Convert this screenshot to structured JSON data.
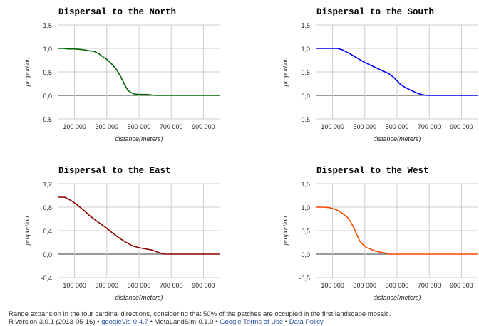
{
  "chart_data": [
    {
      "type": "line",
      "title": "Dispersal to the North",
      "xlabel": "distance(meters)",
      "ylabel": "proportion",
      "color": "#006400",
      "xlim": [
        0,
        1000000
      ],
      "ylim": [
        -0.5,
        1.5
      ],
      "yticks": [
        -0.5,
        0,
        0.5,
        1,
        1.5
      ],
      "ytick_labels": [
        "-0,5",
        "0,0",
        "0,5",
        "1,0",
        "1,5"
      ],
      "xticks": [
        100000,
        300000,
        500000,
        700000,
        900000
      ],
      "xtick_labels": [
        "100 000",
        "300 000",
        "500 000",
        "700 000",
        "900 000"
      ],
      "x": [
        0,
        30000,
        60000,
        100000,
        130000,
        160000,
        190000,
        220000,
        250000,
        280000,
        300000,
        330000,
        360000,
        390000,
        410000,
        430000,
        450000,
        470000,
        500000,
        550000,
        600000,
        700000,
        800000,
        1000000
      ],
      "y": [
        1.0,
        1.0,
        0.99,
        0.99,
        0.98,
        0.97,
        0.95,
        0.94,
        0.89,
        0.81,
        0.77,
        0.67,
        0.55,
        0.38,
        0.23,
        0.11,
        0.06,
        0.03,
        0.02,
        0.02,
        0.0,
        0.0,
        0.0,
        0.0
      ]
    },
    {
      "type": "line",
      "title": "Dispersal to the South",
      "xlabel": "distance(meters)",
      "ylabel": "proportion",
      "color": "#0000ee",
      "xlim": [
        0,
        1000000
      ],
      "ylim": [
        -0.5,
        1.5
      ],
      "yticks": [
        -0.5,
        0,
        0.5,
        1,
        1.5
      ],
      "ytick_labels": [
        "-0,5",
        "0,0",
        "0,5",
        "1,0",
        "1,5"
      ],
      "xticks": [
        100000,
        300000,
        500000,
        700000,
        900000
      ],
      "xtick_labels": [
        "100 000",
        "300 000",
        "500 000",
        "700 000",
        "900 000"
      ],
      "x": [
        0,
        50000,
        100000,
        130000,
        160000,
        200000,
        250000,
        300000,
        350000,
        400000,
        450000,
        480000,
        500000,
        520000,
        550000,
        580000,
        610000,
        640000,
        680000,
        700000,
        800000,
        1000000
      ],
      "y": [
        1.0,
        1.0,
        1.0,
        1.0,
        0.97,
        0.9,
        0.8,
        0.7,
        0.62,
        0.54,
        0.46,
        0.38,
        0.31,
        0.24,
        0.17,
        0.12,
        0.07,
        0.03,
        0.0,
        0.0,
        0.0,
        0.0
      ]
    },
    {
      "type": "line",
      "title": "Dispersal to the East",
      "xlabel": "distance(meters)",
      "ylabel": "proportion",
      "color": "#8b0000",
      "xlim": [
        0,
        1000000
      ],
      "ylim": [
        -0.4,
        1.2
      ],
      "yticks": [
        -0.4,
        0,
        0.4,
        0.8,
        1.2
      ],
      "ytick_labels": [
        "-0,4",
        "0,0",
        "0,4",
        "0,8",
        "1,2"
      ],
      "xticks": [
        100000,
        300000,
        500000,
        700000,
        900000
      ],
      "xtick_labels": [
        "100 000",
        "300 000",
        "500 000",
        "700 000",
        "900 000"
      ],
      "x": [
        0,
        40000,
        80000,
        120000,
        160000,
        200000,
        250000,
        300000,
        340000,
        380000,
        420000,
        460000,
        500000,
        540000,
        580000,
        620000,
        660000,
        700000,
        800000,
        1000000
      ],
      "y": [
        0.97,
        0.97,
        0.91,
        0.83,
        0.74,
        0.64,
        0.54,
        0.44,
        0.35,
        0.27,
        0.2,
        0.14,
        0.11,
        0.09,
        0.07,
        0.03,
        0.0,
        0.0,
        0.0,
        0.0
      ]
    },
    {
      "type": "line",
      "title": "Dispersal to the West",
      "xlabel": "distance(meters)",
      "ylabel": "proportion",
      "color": "#ff4500",
      "xlim": [
        0,
        1000000
      ],
      "ylim": [
        -0.5,
        1.5
      ],
      "yticks": [
        -0.5,
        0,
        0.5,
        1,
        1.5
      ],
      "ytick_labels": [
        "-0,5",
        "0,0",
        "0,5",
        "1,0",
        "1,5"
      ],
      "xticks": [
        100000,
        300000,
        500000,
        700000,
        900000
      ],
      "xtick_labels": [
        "100 000",
        "300 000",
        "500 000",
        "700 000",
        "900 000"
      ],
      "x": [
        0,
        40000,
        80000,
        110000,
        140000,
        160000,
        190000,
        210000,
        230000,
        250000,
        270000,
        290000,
        310000,
        340000,
        370000,
        400000,
        430000,
        450000,
        500000,
        700000,
        1000000
      ],
      "y": [
        1.0,
        1.0,
        0.99,
        0.96,
        0.92,
        0.87,
        0.79,
        0.7,
        0.57,
        0.42,
        0.27,
        0.2,
        0.14,
        0.1,
        0.06,
        0.04,
        0.02,
        0.0,
        0.0,
        0.0,
        0.0
      ]
    }
  ],
  "footer": {
    "caption": "Range expansion in the four cardinal directions, considering that 50% of the patches are occupied in the first landscape mosaic.",
    "r_version": "R version 3.0.1 (2013-05-16)",
    "bullet": "•",
    "googlevis": "googleVis-0.4.7",
    "metalandsim": "MetaLandSim-0.1.0",
    "terms": "Google Terms of Use",
    "policy": "Data Policy"
  }
}
